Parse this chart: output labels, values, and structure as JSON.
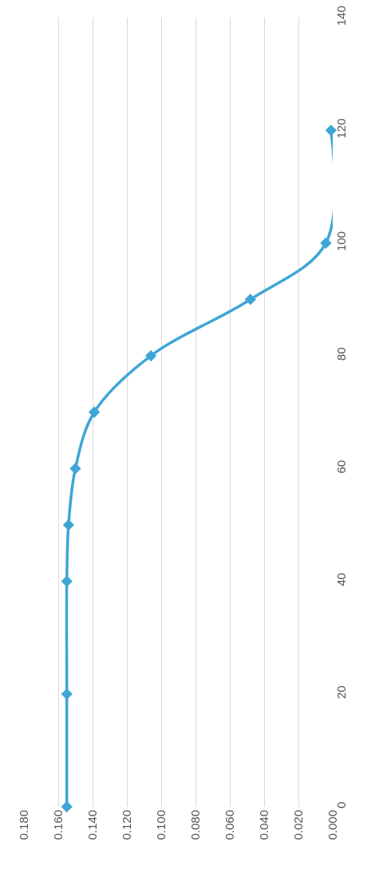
{
  "chart_data": {
    "type": "line",
    "x": [
      0.155,
      0.155,
      0.155,
      0.154,
      0.15,
      0.139,
      0.106,
      0.048,
      0.004,
      0.001
    ],
    "series": [
      {
        "color": "#3ea6d6",
        "values": [
          0,
          20,
          40,
          50,
          60,
          70,
          80,
          90,
          100,
          120
        ]
      }
    ],
    "ylim": [
      0,
      140
    ],
    "yticks": [
      0,
      20,
      40,
      60,
      80,
      100,
      120,
      140
    ],
    "xlim": [
      0.18,
      0
    ],
    "xticks": [
      {
        "value": 0.18,
        "label": "0.180"
      },
      {
        "value": 0.16,
        "label": "0.160"
      },
      {
        "value": 0.14,
        "label": "0.140"
      },
      {
        "value": 0.12,
        "label": "0.120"
      },
      {
        "value": 0.1,
        "label": "0.100"
      },
      {
        "value": 0.08,
        "label": "0.080"
      },
      {
        "value": 0.06,
        "label": "0.060"
      },
      {
        "value": 0.04,
        "label": "0.040"
      },
      {
        "value": 0.02,
        "label": "0.020"
      },
      {
        "value": 0,
        "label": "0.000"
      }
    ],
    "grid": "x",
    "marker": "diamond",
    "line_style": "solid",
    "legend": false
  }
}
